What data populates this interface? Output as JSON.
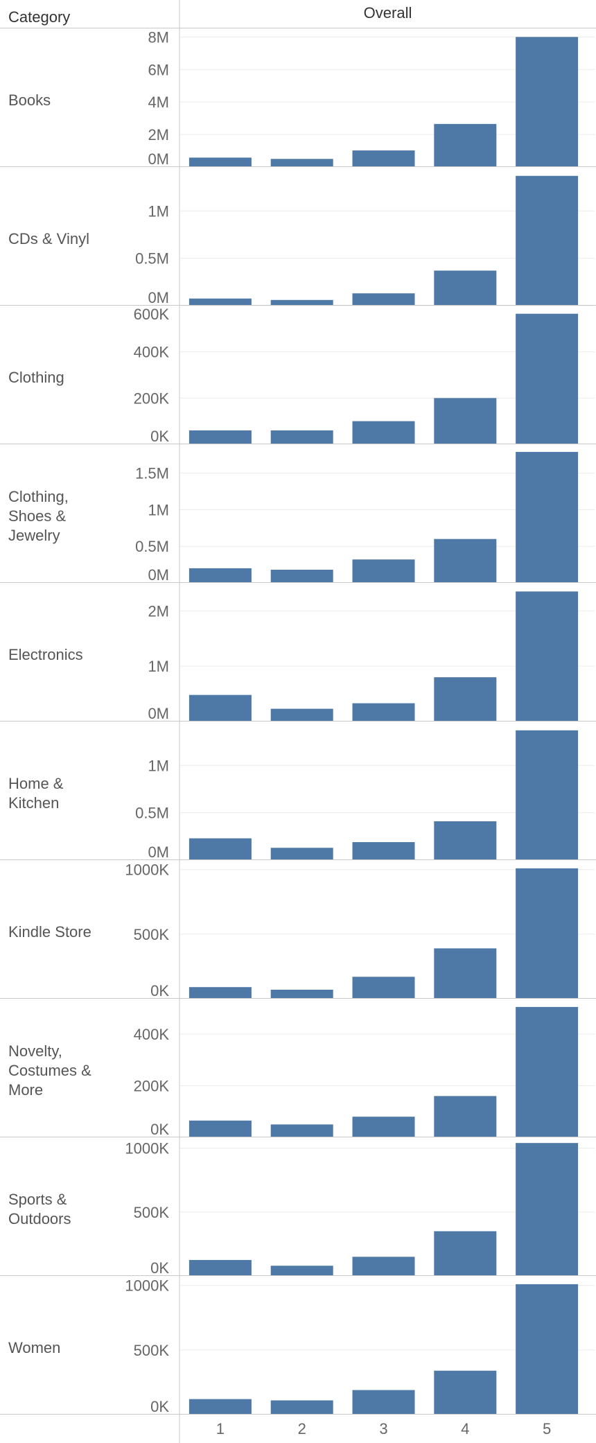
{
  "header": {
    "category_label": "Category",
    "overall_label": "Overall"
  },
  "colors": {
    "bar": "#4e79a7",
    "grid": "#ebebeb",
    "divider": "#c8c8c8",
    "axis_text": "#666666"
  },
  "chart_data": {
    "type": "bar",
    "x": [
      "1",
      "2",
      "3",
      "4",
      "5"
    ],
    "xlabel": "Overall",
    "rowlabel": "Category",
    "panels": [
      {
        "category": "Books",
        "ylim": [
          0,
          8100000
        ],
        "yticks": [
          {
            "v": 0,
            "label": "0M"
          },
          {
            "v": 2000000,
            "label": "2M"
          },
          {
            "v": 4000000,
            "label": "4M"
          },
          {
            "v": 6000000,
            "label": "6M"
          },
          {
            "v": 8000000,
            "label": "8M"
          }
        ],
        "values": [
          580000,
          500000,
          1020000,
          2650000,
          8000000
        ]
      },
      {
        "category": "CDs & Vinyl",
        "ylim": [
          0,
          1390000
        ],
        "yticks": [
          {
            "v": 0,
            "label": "0M"
          },
          {
            "v": 500000,
            "label": "0.5M"
          },
          {
            "v": 1000000,
            "label": "1M"
          }
        ],
        "values": [
          75000,
          60000,
          130000,
          370000,
          1370000
        ]
      },
      {
        "category": "Clothing",
        "ylim": [
          0,
          570000
        ],
        "yticks": [
          {
            "v": 0,
            "label": "0K"
          },
          {
            "v": 200000,
            "label": "200K"
          },
          {
            "v": 400000,
            "label": "400K"
          },
          {
            "v": 600000,
            "label": "600K"
          }
        ],
        "values": [
          60000,
          60000,
          100000,
          200000,
          565000
        ]
      },
      {
        "category": "Clothing,\nShoes &\nJewelry",
        "ylim": [
          0,
          1800000
        ],
        "yticks": [
          {
            "v": 0,
            "label": "0M"
          },
          {
            "v": 500000,
            "label": "0.5M"
          },
          {
            "v": 1000000,
            "label": "1M"
          },
          {
            "v": 1500000,
            "label": "1.5M"
          }
        ],
        "values": [
          200000,
          180000,
          320000,
          600000,
          1790000
        ]
      },
      {
        "category": "Electronics",
        "ylim": [
          0,
          2380000
        ],
        "yticks": [
          {
            "v": 0,
            "label": "0M"
          },
          {
            "v": 1000000,
            "label": "1M"
          },
          {
            "v": 2000000,
            "label": "2M"
          }
        ],
        "values": [
          480000,
          230000,
          330000,
          800000,
          2350000
        ]
      },
      {
        "category": "Home &\nKitchen",
        "ylim": [
          0,
          1390000
        ],
        "yticks": [
          {
            "v": 0,
            "label": "0M"
          },
          {
            "v": 500000,
            "label": "0.5M"
          },
          {
            "v": 1000000,
            "label": "1M"
          }
        ],
        "values": [
          230000,
          130000,
          190000,
          410000,
          1370000
        ]
      },
      {
        "category": "Kindle Store",
        "ylim": [
          0,
          1020000
        ],
        "yticks": [
          {
            "v": 0,
            "label": "0K"
          },
          {
            "v": 500000,
            "label": "500K"
          },
          {
            "v": 1000000,
            "label": "1000K"
          }
        ],
        "values": [
          90000,
          70000,
          170000,
          390000,
          1010000
        ]
      },
      {
        "category": "Novelty,\nCostumes &\nMore",
        "ylim": [
          0,
          510000
        ],
        "yticks": [
          {
            "v": 0,
            "label": "0K"
          },
          {
            "v": 200000,
            "label": "200K"
          },
          {
            "v": 400000,
            "label": "400K"
          }
        ],
        "values": [
          65000,
          50000,
          80000,
          160000,
          505000
        ]
      },
      {
        "category": "Sports &\nOutdoors",
        "ylim": [
          0,
          1030000
        ],
        "yticks": [
          {
            "v": 0,
            "label": "0K"
          },
          {
            "v": 500000,
            "label": "500K"
          },
          {
            "v": 1000000,
            "label": "1000K"
          }
        ],
        "values": [
          125000,
          80000,
          150000,
          350000,
          1040000
        ]
      },
      {
        "category": "Women",
        "ylim": [
          0,
          1020000
        ],
        "yticks": [
          {
            "v": 0,
            "label": "0K"
          },
          {
            "v": 500000,
            "label": "500K"
          },
          {
            "v": 1000000,
            "label": "1000K"
          }
        ],
        "values": [
          120000,
          110000,
          190000,
          340000,
          1010000
        ]
      }
    ]
  }
}
